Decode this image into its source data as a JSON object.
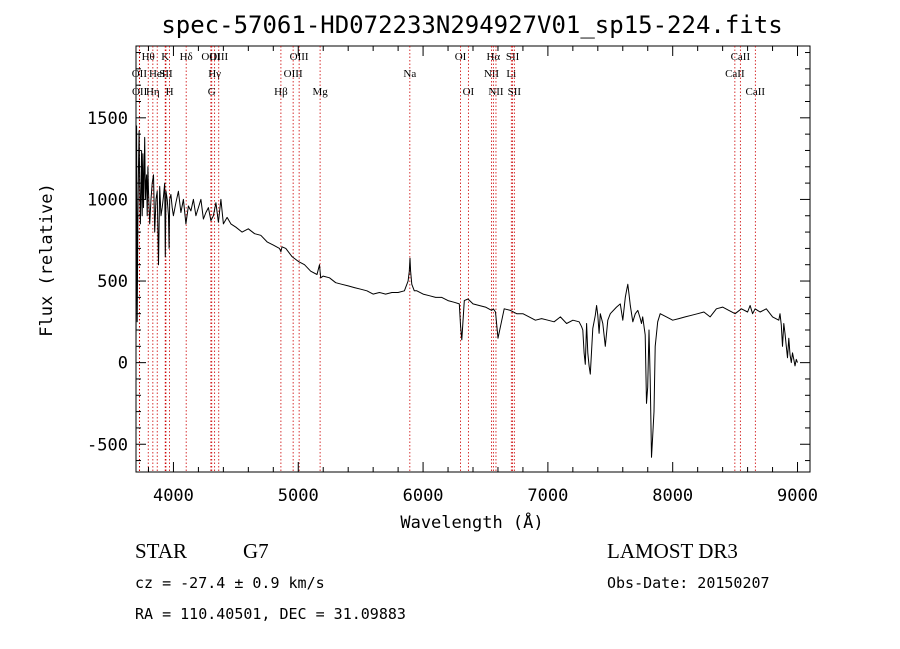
{
  "chart_data": {
    "type": "line",
    "title": "spec-57061-HD072233N294927V01_sp15-224.fits",
    "xlabel": "Wavelength (Å)",
    "ylabel": "Flux (relative)",
    "xlim": [
      3700,
      9100
    ],
    "ylim": [
      -670,
      1940
    ],
    "xticks": [
      4000,
      5000,
      6000,
      7000,
      8000,
      9000
    ],
    "yticks": [
      -500,
      0,
      500,
      1000,
      1500
    ],
    "grid": false,
    "line_color": "#000000",
    "marker_color": "#cc0000",
    "series": [
      {
        "x": [
          3700,
          3705,
          3710,
          3715,
          3720,
          3725,
          3730,
          3735,
          3740,
          3745,
          3750,
          3755,
          3760,
          3765,
          3770,
          3775,
          3780,
          3785,
          3790,
          3795,
          3800,
          3810,
          3820,
          3830,
          3840,
          3850,
          3860,
          3870,
          3880,
          3890,
          3900,
          3910,
          3920,
          3930,
          3935,
          3940,
          3950,
          3960,
          3965,
          3970,
          3980,
          3990,
          4000,
          4020,
          4040,
          4060,
          4080,
          4100,
          4120,
          4140,
          4160,
          4180,
          4200,
          4220,
          4240,
          4260,
          4280,
          4300,
          4320,
          4340,
          4360,
          4380,
          4400,
          4430,
          4460,
          4500,
          4550,
          4600,
          4650,
          4700,
          4750,
          4800,
          4850,
          4861,
          4870,
          4900,
          4950,
          5000,
          5050,
          5100,
          5150,
          5170,
          5180,
          5200,
          5250,
          5300,
          5350,
          5400,
          5450,
          5500,
          5550,
          5600,
          5650,
          5700,
          5750,
          5800,
          5850,
          5880,
          5890,
          5895,
          5900,
          5910,
          5930,
          5950,
          6000,
          6050,
          6100,
          6150,
          6200,
          6250,
          6290,
          6300,
          6310,
          6330,
          6360,
          6400,
          6450,
          6500,
          6550,
          6563,
          6580,
          6600,
          6650,
          6700,
          6750,
          6800,
          6850,
          6900,
          6950,
          7000,
          7050,
          7100,
          7150,
          7200,
          7250,
          7270,
          7280,
          7290,
          7300,
          7310,
          7320,
          7330,
          7340,
          7360,
          7380,
          7390,
          7400,
          7410,
          7420,
          7440,
          7460,
          7480,
          7500,
          7550,
          7580,
          7600,
          7620,
          7630,
          7640,
          7650,
          7660,
          7680,
          7700,
          7720,
          7740,
          7750,
          7760,
          7780,
          7790,
          7800,
          7810,
          7820,
          7830,
          7840,
          7850,
          7860,
          7880,
          7900,
          7950,
          8000,
          8050,
          8100,
          8150,
          8200,
          8250,
          8300,
          8350,
          8400,
          8450,
          8500,
          8550,
          8600,
          8620,
          8640,
          8660,
          8680,
          8700,
          8750,
          8800,
          8850,
          8860,
          8870,
          8880,
          8890,
          8900,
          8910,
          8920,
          8930,
          8940,
          8950,
          8960,
          8970,
          8980,
          8990,
          9000
        ],
        "y": [
          100,
          1450,
          250,
          900,
          1200,
          1420,
          1100,
          850,
          1050,
          1300,
          900,
          1280,
          950,
          1150,
          1380,
          1000,
          1100,
          1150,
          900,
          1200,
          1050,
          850,
          1000,
          1100,
          1150,
          800,
          1000,
          1050,
          600,
          1080,
          900,
          950,
          1020,
          1100,
          650,
          1050,
          1000,
          900,
          700,
          1000,
          1030,
          950,
          900,
          980,
          1050,
          920,
          1000,
          850,
          960,
          930,
          1000,
          900,
          950,
          1000,
          880,
          920,
          950,
          870,
          900,
          980,
          860,
          1000,
          850,
          890,
          850,
          830,
          800,
          820,
          790,
          780,
          740,
          720,
          700,
          680,
          710,
          700,
          650,
          620,
          600,
          560,
          540,
          600,
          520,
          530,
          520,
          490,
          480,
          470,
          460,
          450,
          440,
          420,
          430,
          420,
          430,
          430,
          440,
          500,
          560,
          640,
          560,
          480,
          440,
          440,
          420,
          410,
          400,
          400,
          380,
          370,
          360,
          230,
          140,
          380,
          390,
          360,
          350,
          340,
          320,
          330,
          310,
          150,
          330,
          320,
          300,
          300,
          280,
          260,
          270,
          260,
          250,
          280,
          240,
          260,
          250,
          220,
          200,
          60,
          -10,
          240,
          60,
          -20,
          -70,
          210,
          290,
          350,
          290,
          180,
          300,
          240,
          100,
          260,
          300,
          340,
          360,
          260,
          400,
          440,
          480,
          420,
          350,
          250,
          300,
          320,
          270,
          240,
          280,
          170,
          -250,
          -150,
          200,
          -100,
          -580,
          -450,
          -300,
          100,
          250,
          300,
          280,
          260,
          270,
          280,
          290,
          300,
          310,
          280,
          330,
          340,
          320,
          300,
          330,
          310,
          350,
          300,
          330,
          320,
          310,
          330,
          280,
          260,
          300,
          230,
          100,
          240,
          180,
          100,
          30,
          150,
          50,
          0,
          60,
          20,
          -20,
          20,
          0
        ]
      }
    ],
    "annotations": [
      {
        "label": "OII",
        "x": 3727,
        "row": 2
      },
      {
        "label": "OII",
        "x": 3729,
        "row": 3
      },
      {
        "label": "Hθ",
        "x": 3798,
        "row": 1
      },
      {
        "label": "Hη",
        "x": 3835,
        "row": 3
      },
      {
        "label": "HeI",
        "x": 3870,
        "row": 2
      },
      {
        "label": "K",
        "x": 3934,
        "row": 1
      },
      {
        "label": "SII",
        "x": 3940,
        "row": 2
      },
      {
        "label": "H",
        "x": 3969,
        "row": 3
      },
      {
        "label": "Hδ",
        "x": 4102,
        "row": 1
      },
      {
        "label": "OIII",
        "x": 4300,
        "row": 1
      },
      {
        "label": "Hγ",
        "x": 4330,
        "row": 2
      },
      {
        "label": "G",
        "x": 4307,
        "row": 3
      },
      {
        "label": "OIII",
        "x": 4363,
        "row": 1
      },
      {
        "label": "Hβ",
        "x": 4861,
        "row": 3
      },
      {
        "label": "OIII",
        "x": 4959,
        "row": 2
      },
      {
        "label": "OIII",
        "x": 5007,
        "row": 1
      },
      {
        "label": "Mg",
        "x": 5175,
        "row": 3
      },
      {
        "label": "Na",
        "x": 5894,
        "row": 2
      },
      {
        "label": "OI",
        "x": 6300,
        "row": 1
      },
      {
        "label": "OI",
        "x": 6363,
        "row": 3
      },
      {
        "label": "NII",
        "x": 6548,
        "row": 2
      },
      {
        "label": "Hα",
        "x": 6563,
        "row": 1
      },
      {
        "label": "NII",
        "x": 6584,
        "row": 3
      },
      {
        "label": "SII",
        "x": 6717,
        "row": 1
      },
      {
        "label": "Li",
        "x": 6707,
        "row": 2
      },
      {
        "label": "SII",
        "x": 6731,
        "row": 3
      },
      {
        "label": "CaII",
        "x": 8498,
        "row": 2
      },
      {
        "label": "CaII",
        "x": 8542,
        "row": 1
      },
      {
        "label": "CaII",
        "x": 8662,
        "row": 3
      }
    ]
  },
  "info": {
    "class": "STAR",
    "subclass": "G7",
    "survey": "LAMOST DR3",
    "cz": "cz = -27.4 ± 0.9 km/s",
    "obs_date": "Obs-Date: 20150207",
    "radec": "RA = 110.40501, DEC =  31.09883"
  }
}
